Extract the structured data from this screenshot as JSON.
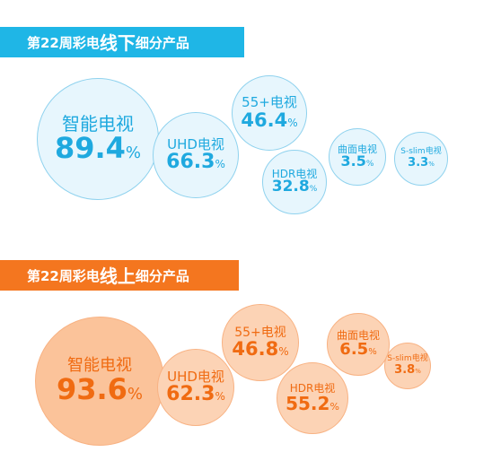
{
  "offline": {
    "banner_prefix": "第22周彩电",
    "banner_emph": "线下",
    "banner_suffix": "细分产品",
    "color": "#1fb6e6",
    "chart_data": {
      "type": "bubble",
      "categories": [
        "智能电视",
        "UHD电视",
        "55+电视",
        "HDR电视",
        "曲面电视",
        "S-slim电视"
      ],
      "values": [
        89.4,
        66.3,
        46.4,
        32.8,
        3.5,
        3.3
      ],
      "labels": [
        "89.4",
        "66.3",
        "46.4",
        "32.8",
        "3.5",
        "3.3"
      ],
      "unit": "%"
    }
  },
  "online": {
    "banner_prefix": "第22周彩电",
    "banner_emph": "线上",
    "banner_suffix": "细分产品",
    "color": "#f4761f",
    "chart_data": {
      "type": "bubble",
      "categories": [
        "智能电视",
        "UHD电视",
        "55+电视",
        "HDR电视",
        "曲面电视",
        "S-slim电视"
      ],
      "values": [
        93.6,
        62.3,
        46.8,
        55.2,
        6.5,
        3.8
      ],
      "labels": [
        "93.6",
        "62.3",
        "46.8",
        "55.2",
        "6.5",
        "3.8"
      ],
      "unit": "%"
    }
  }
}
